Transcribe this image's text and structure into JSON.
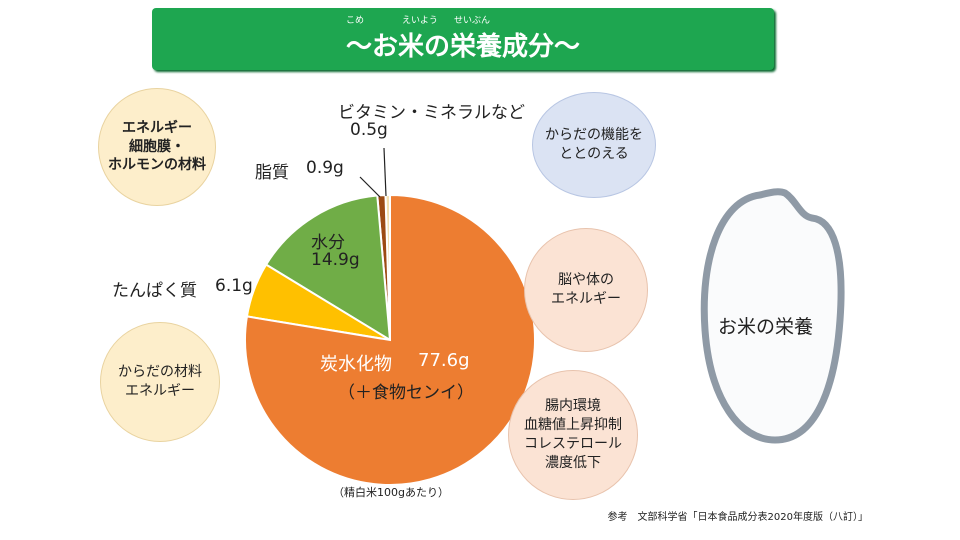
{
  "title": {
    "text": "〜お米の栄養成分〜",
    "ruby": [
      {
        "base": "米",
        "rt": "こめ"
      },
      {
        "base": "栄養",
        "rt": "えいよう"
      },
      {
        "base": "成分",
        "rt": "せいぶん"
      }
    ]
  },
  "chart_data": {
    "type": "pie",
    "unit": "g",
    "start": "top",
    "direction": "clockwise",
    "slices": [
      {
        "name": "炭水化物",
        "sub": "（＋食物センイ）",
        "value": 77.6,
        "label": "77.6g",
        "color": "#ed7d31"
      },
      {
        "name": "たんぱく質",
        "value": 6.1,
        "label": "6.1g",
        "color": "#ffc000"
      },
      {
        "name": "水分",
        "value": 14.9,
        "label": "14.9g",
        "color": "#70ad47"
      },
      {
        "name": "脂質",
        "value": 0.9,
        "label": "0.9g",
        "color": "#9c4a14"
      },
      {
        "name": "ビタミン・ミネラルなど",
        "value": 0.5,
        "label": "0.5g",
        "color": "#f3e0b0"
      }
    ],
    "note": "（精白米100gあたり）"
  },
  "bubbles": {
    "fat": {
      "lines": [
        "エネルギー",
        "細胞膜・",
        "ホルモンの材料"
      ],
      "color": "#fdeecb"
    },
    "vitamin": {
      "lines": [
        "からだの機能を",
        "ととのえる"
      ],
      "color": "#dbe3f3"
    },
    "protein": {
      "lines": [
        "からだの材料",
        "エネルギー"
      ],
      "color": "#fdeecb"
    },
    "carb1": {
      "lines": [
        "脳や体の",
        "エネルギー"
      ],
      "color": "#fbe3d4"
    },
    "carb2": {
      "lines": [
        "腸内環境",
        "血糖値上昇抑制",
        "コレステロール",
        "濃度低下"
      ],
      "color": "#fbe3d4"
    }
  },
  "rice": {
    "label": "お米の栄養"
  },
  "reference": "参考　文部科学省「日本食品成分表2020年度版（八訂）」"
}
